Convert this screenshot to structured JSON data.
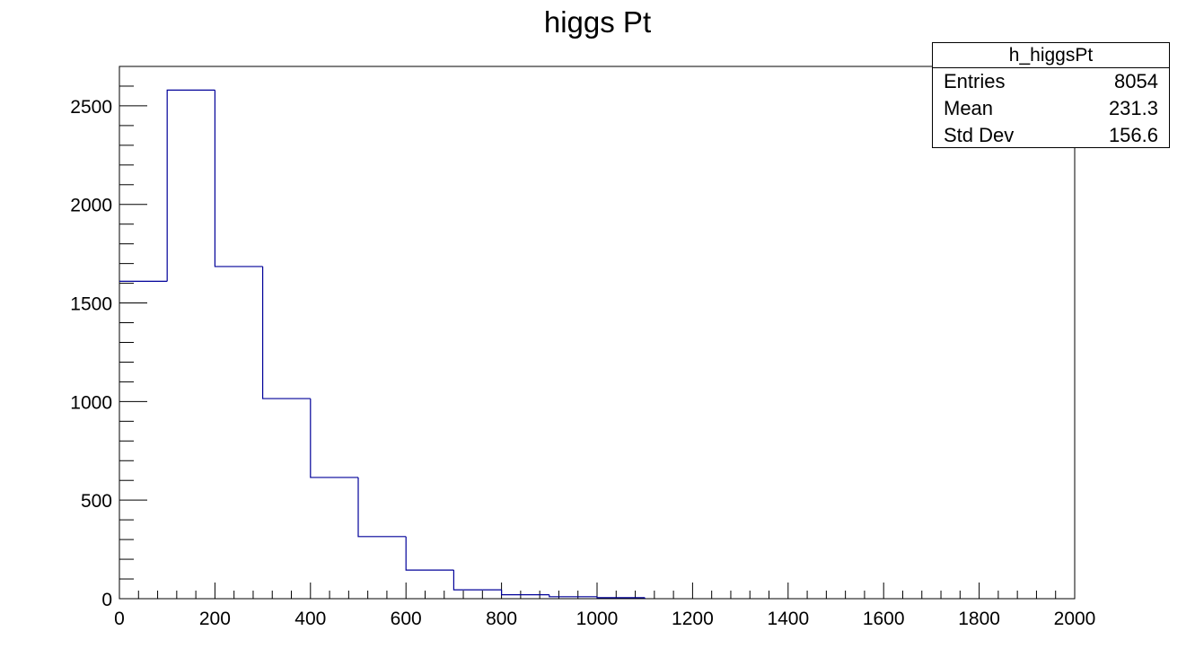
{
  "chart_data": {
    "type": "bar",
    "histogram": true,
    "title": "higgs Pt",
    "xlabel": "",
    "ylabel": "",
    "xlim": [
      0,
      2000
    ],
    "ylim": [
      0,
      2700
    ],
    "bin_edges": [
      0,
      100,
      200,
      300,
      400,
      500,
      600,
      700,
      800,
      900,
      1000,
      1100,
      1200,
      1300,
      1400,
      1500,
      1600,
      1700,
      1800,
      1900,
      2000
    ],
    "values": [
      1610,
      2580,
      1685,
      1015,
      615,
      315,
      145,
      45,
      20,
      10,
      5,
      0,
      0,
      0,
      0,
      0,
      0,
      0,
      0,
      0
    ],
    "x_ticks": [
      "0",
      "200",
      "400",
      "600",
      "800",
      "1000",
      "1200",
      "1400",
      "1600",
      "1800",
      "2000"
    ],
    "y_ticks": [
      "0",
      "500",
      "1000",
      "1500",
      "2000",
      "2500"
    ],
    "grid": false,
    "line_color": "#000099",
    "stats_box": {
      "name": "h_higgsPt",
      "placement": "top-right",
      "rows": [
        {
          "label": "Entries",
          "value": "8054"
        },
        {
          "label": "Mean",
          "value": "231.3"
        },
        {
          "label": "Std Dev",
          "value": "156.6"
        }
      ]
    }
  }
}
